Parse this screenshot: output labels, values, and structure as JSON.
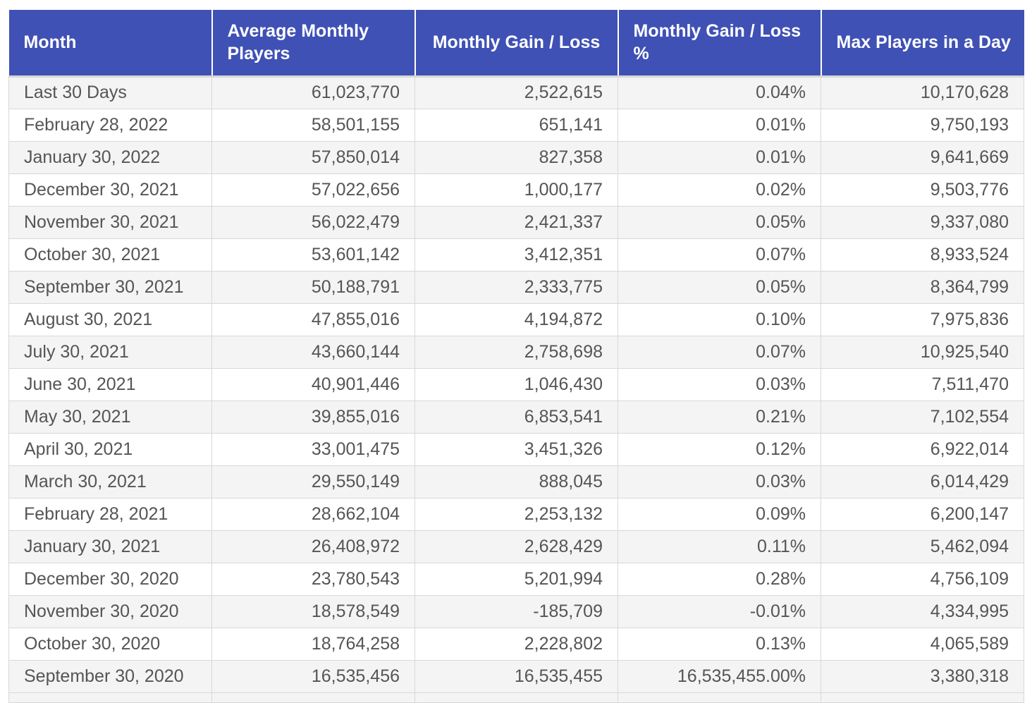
{
  "table": {
    "headers": [
      "Month",
      "Average Monthly Players",
      "Monthly Gain / Loss",
      "Monthly Gain / Loss %",
      "Max Players in a Day"
    ],
    "rows": [
      [
        "Last 30 Days",
        "61,023,770",
        "2,522,615",
        "0.04%",
        "10,170,628"
      ],
      [
        "February 28, 2022",
        "58,501,155",
        "651,141",
        "0.01%",
        "9,750,193"
      ],
      [
        "January 30, 2022",
        "57,850,014",
        "827,358",
        "0.01%",
        "9,641,669"
      ],
      [
        "December 30, 2021",
        "57,022,656",
        "1,000,177",
        "0.02%",
        "9,503,776"
      ],
      [
        "November 30, 2021",
        "56,022,479",
        "2,421,337",
        "0.05%",
        "9,337,080"
      ],
      [
        "October 30, 2021",
        "53,601,142",
        "3,412,351",
        "0.07%",
        "8,933,524"
      ],
      [
        "September 30, 2021",
        "50,188,791",
        "2,333,775",
        "0.05%",
        "8,364,799"
      ],
      [
        "August 30, 2021",
        "47,855,016",
        "4,194,872",
        "0.10%",
        "7,975,836"
      ],
      [
        "July 30, 2021",
        "43,660,144",
        "2,758,698",
        "0.07%",
        "10,925,540"
      ],
      [
        "June 30, 2021",
        "40,901,446",
        "1,046,430",
        "0.03%",
        "7,511,470"
      ],
      [
        "May 30, 2021",
        "39,855,016",
        "6,853,541",
        "0.21%",
        "7,102,554"
      ],
      [
        "April 30, 2021",
        "33,001,475",
        "3,451,326",
        "0.12%",
        "6,922,014"
      ],
      [
        "March 30, 2021",
        "29,550,149",
        "888,045",
        "0.03%",
        "6,014,429"
      ],
      [
        "February 28, 2021",
        "28,662,104",
        "2,253,132",
        "0.09%",
        "6,200,147"
      ],
      [
        "January 30, 2021",
        "26,408,972",
        "2,628,429",
        "0.11%",
        "5,462,094"
      ],
      [
        "December 30, 2020",
        "23,780,543",
        "5,201,994",
        "0.28%",
        "4,756,109"
      ],
      [
        "November 30, 2020",
        "18,578,549",
        "-185,709",
        "-0.01%",
        "4,334,995"
      ],
      [
        "October 30, 2020",
        "18,764,258",
        "2,228,802",
        "0.13%",
        "4,065,589"
      ],
      [
        "September 30, 2020",
        "16,535,456",
        "16,535,455",
        "16,535,455.00%",
        "3,380,318"
      ]
    ]
  },
  "colors": {
    "header_bg": "#3f51b5",
    "header_text": "#ffffff",
    "row_alt": "#f4f4f4",
    "row": "#ffffff",
    "cell_text": "#555555",
    "grid": "#d8d8d8"
  }
}
